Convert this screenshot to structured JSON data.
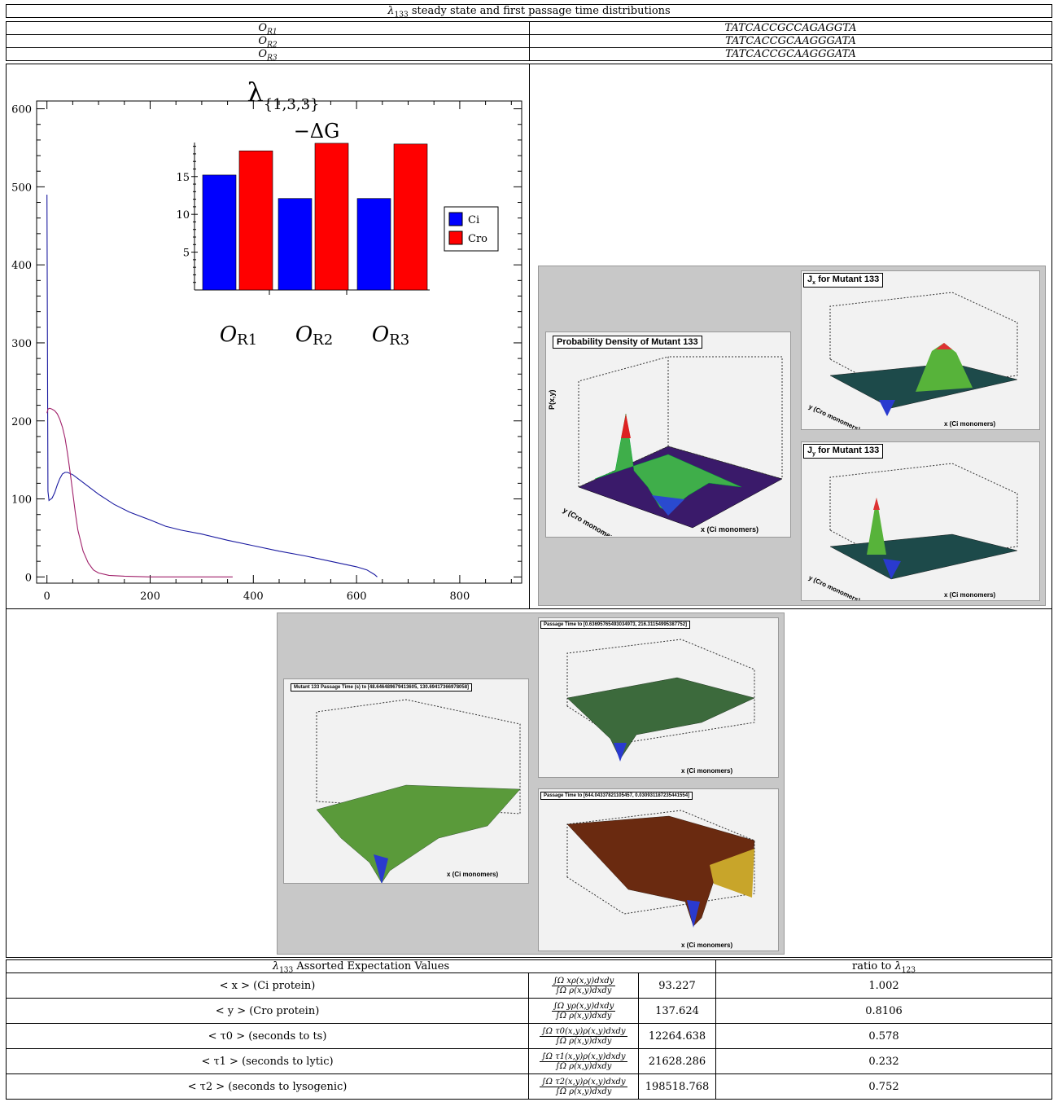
{
  "header": {
    "title_symbol": "λ",
    "title_sub": "133",
    "title_rest": " steady state and first passage time distributions"
  },
  "operators": [
    {
      "label": "O",
      "sub": "R1",
      "sequence": "TATCACCGCCAGAGGTA"
    },
    {
      "label": "O",
      "sub": "R2",
      "sequence": "TATCACCGCAAGGGATA"
    },
    {
      "label": "O",
      "sub": "R3",
      "sequence": "TATCACCGCAAGGGATA"
    }
  ],
  "main_chart": {
    "title": "λ",
    "title_sub": "{1,3,3}",
    "x_ticks": [
      "0",
      "200",
      "400",
      "600",
      "800"
    ],
    "y_ticks": [
      "0",
      "100",
      "200",
      "300",
      "400",
      "500",
      "600"
    ],
    "colors": {
      "blue": "#1a1aa0",
      "red": "#a0206a"
    }
  },
  "chart_data": [
    {
      "type": "line",
      "title": "λ{1,3,3}",
      "xlim": [
        -20,
        920
      ],
      "ylim": [
        -8,
        610
      ],
      "series": [
        {
          "x": [
            0,
            1,
            2,
            4,
            6,
            10,
            15,
            20,
            25,
            30,
            35,
            40,
            50,
            60,
            80,
            100,
            130,
            160,
            200,
            230,
            260,
            300,
            350,
            400,
            450,
            500,
            550,
            600,
            620,
            635,
            640
          ],
          "y": [
            490,
            300,
            110,
            98,
            99,
            101,
            108,
            118,
            126,
            132,
            134,
            134,
            131,
            126,
            116,
            106,
            93,
            83,
            73,
            65,
            60,
            55,
            47,
            40,
            33,
            27,
            20,
            13,
            9,
            3,
            0
          ]
        },
        {
          "x": [
            0,
            2,
            4,
            6,
            10,
            15,
            20,
            25,
            30,
            35,
            40,
            45,
            50,
            55,
            60,
            70,
            80,
            90,
            100,
            120,
            150,
            200,
            250,
            300,
            360
          ],
          "y": [
            210,
            215,
            216,
            216,
            215,
            213,
            209,
            202,
            192,
            178,
            158,
            134,
            108,
            82,
            60,
            33,
            18,
            9,
            5,
            2,
            1,
            0,
            0,
            0,
            0
          ]
        }
      ]
    },
    {
      "type": "bar",
      "title": "−ΔG",
      "categories": [
        "O_R1",
        "O_R2",
        "O_R3"
      ],
      "ylim": [
        0,
        19.5
      ],
      "series": [
        {
          "name": "Ci",
          "values": [
            15.2,
            12.1,
            12.1
          ]
        },
        {
          "name": "Cro",
          "values": [
            18.4,
            19.4,
            19.3
          ]
        }
      ],
      "colors": {
        "Ci": "#0000ff",
        "Cro": "#ff0000"
      }
    }
  ],
  "inset": {
    "title": "−ΔG",
    "y_ticks": [
      "5",
      "10",
      "15"
    ],
    "categories": [
      {
        "label": "O",
        "sub": "R1"
      },
      {
        "label": "O",
        "sub": "R2"
      },
      {
        "label": "O",
        "sub": "R3"
      }
    ],
    "legend": [
      "Ci",
      "Cro"
    ]
  },
  "surface_panels": {
    "prob_title": "Probability Density of Mutant 133",
    "jx_title": "J",
    "jx_sub": "x",
    "jx_rest": " for Mutant 133",
    "jy_title": "J",
    "jy_sub": "y",
    "jy_rest": " for Mutant 133",
    "passage_title_1": "Mutant 133 Passage Time (s) to [48.646489679413605, 130.69417366978058]",
    "passage_title_2": "Passage Time to [0.63695765493034973, 216.31154995387752]",
    "passage_title_3": "Passage Time to [644.04337821105457, 0.030931187235441554]",
    "x_axis_label": "x (Ci monomers)",
    "y_axis_label": "y (Cro monomers)"
  },
  "expectations": {
    "title_symbol": "λ",
    "title_sub": "133",
    "title_rest": " Assorted Expectation Values",
    "ratio_header_text": "ratio to ",
    "ratio_header_symbol": "λ",
    "ratio_header_sub": "123",
    "rows": [
      {
        "label": "< x > (Ci protein)",
        "num": "∫Ω xρ(x,y)dxdy",
        "den": "∫Ω ρ(x,y)dxdy",
        "value": "93.227",
        "ratio": "1.002"
      },
      {
        "label": "< y > (Cro protein)",
        "num": "∫Ω yρ(x,y)dxdy",
        "den": "∫Ω ρ(x,y)dxdy",
        "value": "137.624",
        "ratio": "0.8106"
      },
      {
        "label": "< τ0 > (seconds to ts)",
        "num": "∫Ω τ0(x,y)ρ(x,y)dxdy",
        "den": "∫Ω ρ(x,y)dxdy",
        "value": "12264.638",
        "ratio": "0.578"
      },
      {
        "label": "< τ1 > (seconds to lytic)",
        "num": "∫Ω τ1(x,y)ρ(x,y)dxdy",
        "den": "∫Ω ρ(x,y)dxdy",
        "value": "21628.286",
        "ratio": "0.232"
      },
      {
        "label": "< τ2 > (seconds to lysogenic)",
        "num": "∫Ω τ2(x,y)ρ(x,y)dxdy",
        "den": "∫Ω ρ(x,y)dxdy",
        "value": "198518.768",
        "ratio": "0.752"
      }
    ]
  }
}
